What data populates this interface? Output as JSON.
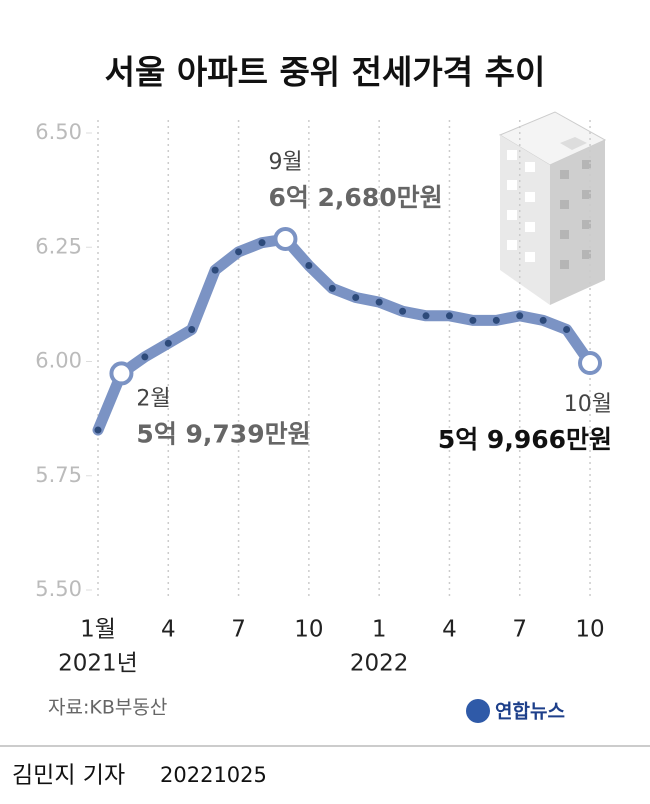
{
  "chart_data": {
    "type": "line",
    "title": "서울 아파트 중위 전세가격 추이",
    "categories": [
      "1월",
      null,
      null,
      "4",
      null,
      null,
      "7",
      null,
      null,
      "10",
      null,
      null,
      "1",
      null,
      null,
      "4",
      null,
      null,
      "7",
      null,
      null,
      "10"
    ],
    "year_labels": [
      "2021년",
      "2022"
    ],
    "series": [
      {
        "name": "서울 아파트 중위 전세가격",
        "color": "#7b93c4",
        "values": [
          5.85,
          5.9739,
          6.01,
          6.04,
          6.07,
          6.2,
          6.24,
          6.26,
          6.268,
          6.21,
          6.16,
          6.14,
          6.13,
          6.11,
          6.1,
          6.1,
          6.09,
          6.09,
          6.1,
          6.09,
          6.07,
          5.9966
        ],
        "point_labels": [
          null,
          "2월",
          null,
          null,
          null,
          null,
          null,
          null,
          "9월",
          null,
          null,
          null,
          null,
          null,
          null,
          null,
          null,
          null,
          null,
          null,
          null,
          "10월"
        ],
        "value_labels": [
          null,
          "5억 9,739만원",
          null,
          null,
          null,
          null,
          null,
          null,
          "6억 2,680만원",
          null,
          null,
          null,
          null,
          null,
          null,
          null,
          null,
          null,
          null,
          null,
          null,
          "5억 9,966만원"
        ]
      }
    ],
    "ylim": [
      5.5,
      6.5
    ],
    "yticks": [
      {
        "value": 5.5,
        "label": "5.50"
      },
      5.75,
      {
        "value": 6.0,
        "label": "6.00"
      },
      6.25,
      {
        "value": 6.5,
        "label": "6.50"
      }
    ],
    "grid": true,
    "source": "자료:KB부동산",
    "logo": "연합뉴스"
  },
  "footer": {
    "reporter": "김민지 기자",
    "date": "20221025"
  }
}
